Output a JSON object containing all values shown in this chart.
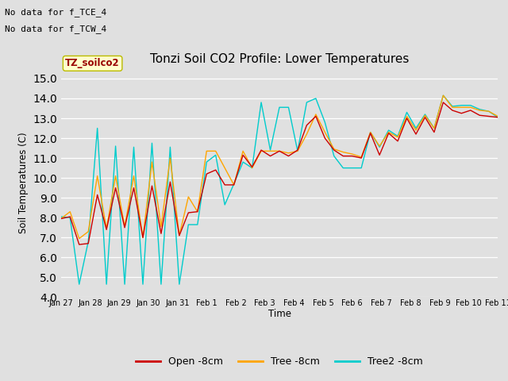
{
  "title": "Tonzi Soil CO2 Profile: Lower Temperatures",
  "ylabel": "Soil Temperatures (C)",
  "xlabel": "Time",
  "top_text": [
    "No data for f_TCE_4",
    "No data for f_TCW_4"
  ],
  "legend_label": "TZ_soilco2",
  "ylim": [
    4.0,
    15.5
  ],
  "yticks": [
    4.0,
    5.0,
    6.0,
    7.0,
    8.0,
    9.0,
    10.0,
    11.0,
    12.0,
    13.0,
    14.0,
    15.0
  ],
  "xtick_labels": [
    "Jan 27",
    "Jan 28",
    "Jan 29",
    "Jan 30",
    "Jan 31",
    "Feb 1",
    "Feb 2",
    "Feb 3",
    "Feb 4",
    "Feb 5",
    "Feb 6",
    "Feb 7",
    "Feb 8",
    "Feb 9",
    "Feb 10",
    "Feb 11"
  ],
  "line_colors": {
    "open": "#cc0000",
    "tree": "#ffa500",
    "tree2": "#00cccc"
  },
  "line_labels": [
    "Open -8cm",
    "Tree -8cm",
    "Tree2 -8cm"
  ],
  "background_color": "#e0e0e0",
  "plot_bg_color": "#e0e0e0",
  "grid_color": "#ffffff",
  "open_data": [
    7.95,
    8.05,
    6.65,
    6.7,
    9.15,
    7.4,
    9.5,
    7.5,
    9.5,
    7.0,
    9.6,
    7.2,
    9.8,
    7.1,
    8.25,
    8.3,
    10.2,
    10.4,
    9.65,
    9.65,
    11.15,
    10.55,
    11.4,
    11.1,
    11.35,
    11.1,
    11.4,
    12.65,
    13.1,
    12.0,
    11.4,
    11.1,
    11.1,
    11.0,
    12.25,
    11.15,
    12.25,
    11.85,
    13.0,
    12.2,
    13.05,
    12.3,
    13.8,
    13.4,
    13.25,
    13.4,
    13.15,
    13.1,
    13.05
  ],
  "tree_data": [
    7.95,
    8.3,
    6.95,
    7.3,
    10.1,
    7.45,
    10.1,
    7.55,
    10.1,
    7.0,
    10.8,
    7.55,
    11.0,
    7.1,
    9.05,
    8.3,
    11.35,
    11.35,
    10.5,
    9.65,
    11.35,
    10.5,
    11.35,
    11.35,
    11.35,
    11.25,
    11.35,
    12.2,
    13.2,
    12.3,
    11.45,
    11.3,
    11.2,
    11.05,
    12.3,
    11.6,
    12.3,
    12.05,
    13.1,
    12.4,
    13.15,
    12.5,
    14.15,
    13.55,
    13.55,
    13.55,
    13.4,
    13.35,
    13.1
  ],
  "tree2_data": [
    8.05,
    8.0,
    4.65,
    6.8,
    12.5,
    4.65,
    11.6,
    4.65,
    11.55,
    4.65,
    11.75,
    4.65,
    11.55,
    4.65,
    7.65,
    7.65,
    10.8,
    11.15,
    8.65,
    9.7,
    10.8,
    10.5,
    13.8,
    11.4,
    13.55,
    13.55,
    11.35,
    13.8,
    14.0,
    12.8,
    11.1,
    10.5,
    10.5,
    10.5,
    12.3,
    11.55,
    12.4,
    12.1,
    13.3,
    12.5,
    13.2,
    12.5,
    14.15,
    13.6,
    13.65,
    13.65,
    13.45,
    13.35,
    13.05
  ]
}
